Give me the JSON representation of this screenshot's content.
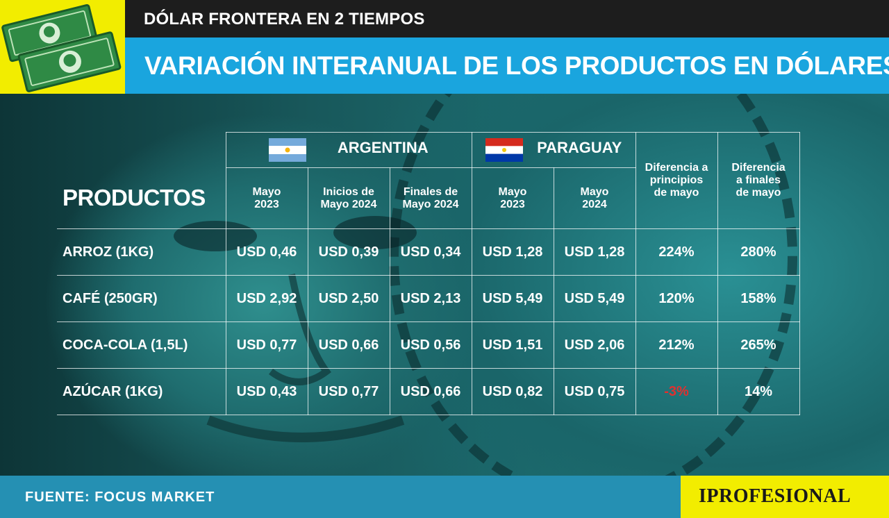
{
  "header": {
    "kicker": "DÓLAR FRONTERA EN 2 TIEMPOS",
    "title": "VARIACIÓN INTERANUAL DE LOS PRODUCTOS EN DÓLARES",
    "logo_icon": "banknotes-icon"
  },
  "table": {
    "corner_label": "PRODUCTOS",
    "groups": [
      {
        "name": "ARGENTINA",
        "flag_icon": "argentina-flag-icon"
      },
      {
        "name": "PARAGUAY",
        "flag_icon": "paraguay-flag-icon"
      }
    ],
    "diff_headers": [
      "Diferencia a principios de mayo",
      "Diferencia a finales de mayo"
    ],
    "columns": [
      [
        "Mayo",
        "2023"
      ],
      [
        "Inicios de",
        "Mayo 2024"
      ],
      [
        "Finales de",
        "Mayo 2024"
      ],
      [
        "Mayo",
        "2023"
      ],
      [
        "Mayo",
        "2024"
      ]
    ],
    "rows": [
      {
        "product": "ARROZ (1KG)",
        "values": [
          "USD 0,46",
          "USD 0,39",
          "USD 0,34",
          "USD 1,28",
          "USD 1,28"
        ],
        "diff_start": "224%",
        "diff_end": "280%"
      },
      {
        "product": "CAFÉ (250GR)",
        "values": [
          "USD 2,92",
          "USD 2,50",
          "USD 2,13",
          "USD 5,49",
          "USD 5,49"
        ],
        "diff_start": "120%",
        "diff_end": "158%"
      },
      {
        "product": "COCA-COLA (1,5L)",
        "values": [
          "USD 0,77",
          "USD 0,66",
          "USD 0,56",
          "USD 1,51",
          "USD 2,06"
        ],
        "diff_start": "212%",
        "diff_end": "265%"
      },
      {
        "product": "AZÚCAR (1KG)",
        "values": [
          "USD 0,43",
          "USD 0,77",
          "USD 0,66",
          "USD 0,82",
          "USD 0,75"
        ],
        "diff_start": "-3%",
        "diff_end": "14%"
      }
    ]
  },
  "footer": {
    "source": "FUENTE: FOCUS MARKET",
    "brand": "IPROFESIONAL"
  },
  "colors": {
    "yellow": "#f2ed00",
    "blue": "#1aa5de",
    "dark": "#1d1d1d",
    "negative": "#e0302f"
  }
}
